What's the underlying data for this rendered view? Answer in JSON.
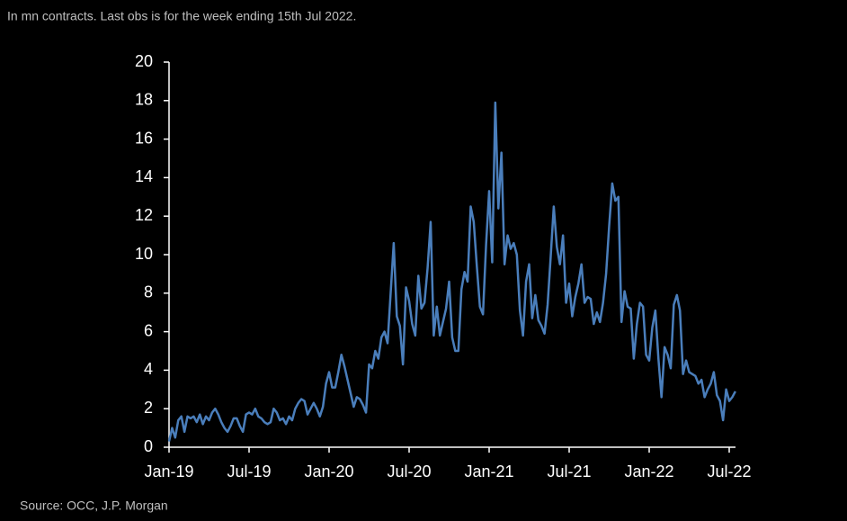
{
  "chart_data": {
    "type": "line",
    "subtitle": "In mn contracts. Last obs is for the week ending 15th Jul 2022.",
    "source": "Source:  OCC, J.P. Morgan",
    "categories": [
      "Jan-19",
      null,
      null,
      null,
      null,
      null,
      null,
      null,
      null,
      null,
      null,
      null,
      null,
      null,
      null,
      null,
      null,
      null,
      null,
      null,
      null,
      null,
      null,
      null,
      null,
      null,
      "Jul-19",
      null,
      null,
      null,
      null,
      null,
      null,
      null,
      null,
      null,
      null,
      null,
      null,
      null,
      null,
      null,
      null,
      null,
      null,
      null,
      null,
      null,
      null,
      null,
      null,
      null,
      "Jan-20",
      null,
      null,
      null,
      null,
      null,
      null,
      null,
      null,
      null,
      null,
      null,
      null,
      null,
      null,
      null,
      null,
      null,
      null,
      null,
      null,
      null,
      null,
      null,
      null,
      null,
      "Jul-20",
      null,
      null,
      null,
      null,
      null,
      null,
      null,
      null,
      null,
      null,
      null,
      null,
      null,
      null,
      null,
      null,
      null,
      null,
      null,
      null,
      null,
      null,
      null,
      null,
      null,
      "Jan-21",
      null,
      null,
      null,
      null,
      null,
      null,
      null,
      null,
      null,
      null,
      null,
      null,
      null,
      null,
      null,
      null,
      null,
      null,
      null,
      null,
      null,
      null,
      null,
      null,
      null,
      "Jul-21",
      null,
      null,
      null,
      null,
      null,
      null,
      null,
      null,
      null,
      null,
      null,
      null,
      null,
      null,
      null,
      null,
      null,
      null,
      null,
      null,
      null,
      null,
      null,
      null,
      null,
      "Jan-22",
      null,
      null,
      null,
      null,
      null,
      null,
      null,
      null,
      null,
      null,
      null,
      null,
      null,
      null,
      null,
      null,
      null,
      null,
      null,
      null,
      null,
      null,
      null,
      null,
      null,
      "Jul-22",
      null,
      null
    ],
    "series": [
      {
        "name": "Contracts",
        "color": "#4a7ebb",
        "values": [
          0.3,
          1.0,
          0.5,
          1.4,
          1.6,
          0.8,
          1.6,
          1.5,
          1.6,
          1.3,
          1.7,
          1.2,
          1.6,
          1.4,
          1.8,
          2.0,
          1.7,
          1.3,
          1.0,
          0.8,
          1.1,
          1.5,
          1.5,
          1.1,
          0.8,
          1.7,
          1.8,
          1.7,
          2.0,
          1.6,
          1.5,
          1.3,
          1.2,
          1.3,
          2.0,
          1.8,
          1.4,
          1.5,
          1.2,
          1.6,
          1.4,
          2.0,
          2.3,
          2.5,
          2.4,
          1.7,
          2.0,
          2.3,
          2.0,
          1.6,
          2.1,
          3.3,
          3.9,
          3.1,
          3.1,
          3.9,
          4.8,
          4.2,
          3.5,
          2.8,
          2.1,
          2.6,
          2.5,
          2.2,
          1.8,
          4.3,
          4.1,
          5.0,
          4.6,
          5.7,
          6.0,
          5.4,
          8.0,
          10.6,
          6.8,
          6.3,
          4.3,
          8.3,
          7.6,
          6.4,
          5.8,
          8.9,
          7.2,
          7.5,
          9.3,
          11.7,
          5.8,
          7.3,
          5.8,
          6.5,
          7.2,
          8.6,
          5.7,
          5.0,
          5.0,
          8.2,
          9.1,
          8.6,
          12.5,
          11.7,
          9.4,
          7.3,
          6.9,
          10.5,
          13.3,
          9.6,
          17.9,
          12.4,
          15.3,
          9.5,
          11.0,
          10.3,
          10.6,
          10.0,
          7.1,
          5.8,
          8.6,
          9.5,
          6.7,
          7.9,
          6.6,
          6.3,
          5.9,
          7.4,
          9.9,
          12.5,
          10.4,
          9.5,
          11.0,
          7.5,
          8.5,
          6.8,
          7.8,
          8.5,
          9.5,
          7.5,
          7.8,
          7.7,
          6.4,
          7.0,
          6.5,
          7.5,
          9.0,
          11.5,
          13.7,
          12.8,
          13.0,
          6.5,
          8.1,
          7.3,
          7.2,
          4.6,
          6.4,
          7.5,
          7.3,
          4.8,
          4.5,
          6.2,
          7.1,
          4.6,
          2.6,
          5.2,
          4.8,
          4.1,
          7.4,
          7.9,
          7.1,
          3.8,
          4.5,
          3.9,
          3.8,
          3.7,
          3.3,
          3.5,
          2.6,
          3.0,
          3.3,
          3.9,
          2.7,
          2.4,
          1.4,
          3.0,
          2.4,
          2.6,
          2.9
        ]
      }
    ],
    "ylim": [
      0,
      20
    ],
    "yticks": [
      0,
      2,
      4,
      6,
      8,
      10,
      12,
      14,
      16,
      18,
      20
    ],
    "grid": false
  }
}
